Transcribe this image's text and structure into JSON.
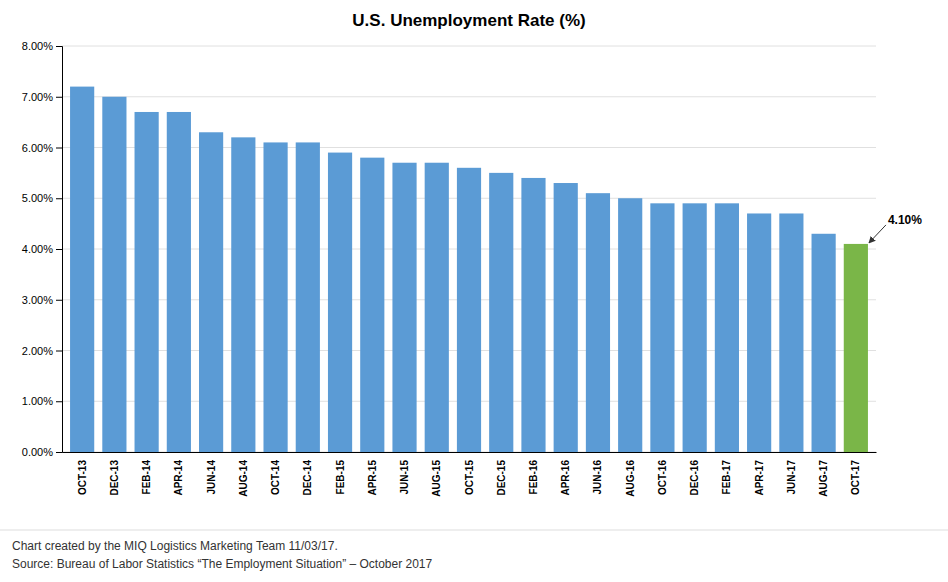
{
  "chart_data": {
    "type": "bar",
    "title": "U.S. Unemployment Rate (%)",
    "categories": [
      "OCT-13",
      "DEC-13",
      "FEB-14",
      "APR-14",
      "JUN-14",
      "AUG-14",
      "OCT-14",
      "DEC-14",
      "FEB-15",
      "APR-15",
      "JUN-15",
      "AUG-15",
      "OCT-15",
      "DEC-15",
      "FEB-16",
      "APR-16",
      "JUN-16",
      "AUG-16",
      "OCT-16",
      "DEC-16",
      "FEB-17",
      "APR-17",
      "JUN-17",
      "AUG-17",
      "OCT-17"
    ],
    "values": [
      0.072,
      0.07,
      0.067,
      0.067,
      0.063,
      0.062,
      0.061,
      0.061,
      0.059,
      0.058,
      0.057,
      0.057,
      0.056,
      0.055,
      0.054,
      0.053,
      0.051,
      0.05,
      0.049,
      0.049,
      0.049,
      0.047,
      0.047,
      0.043,
      0.041
    ],
    "colors": [
      "#5B9BD5",
      "#5B9BD5",
      "#5B9BD5",
      "#5B9BD5",
      "#5B9BD5",
      "#5B9BD5",
      "#5B9BD5",
      "#5B9BD5",
      "#5B9BD5",
      "#5B9BD5",
      "#5B9BD5",
      "#5B9BD5",
      "#5B9BD5",
      "#5B9BD5",
      "#5B9BD5",
      "#5B9BD5",
      "#5B9BD5",
      "#5B9BD5",
      "#5B9BD5",
      "#5B9BD5",
      "#5B9BD5",
      "#5B9BD5",
      "#5B9BD5",
      "#5B9BD5",
      "#7AB648"
    ],
    "ylim": [
      0.0,
      0.08
    ],
    "yticks": [
      {
        "value": 0.0,
        "label": "0.00%"
      },
      {
        "value": 0.01,
        "label": "1.00%"
      },
      {
        "value": 0.02,
        "label": "2.00%"
      },
      {
        "value": 0.03,
        "label": "3.00%"
      },
      {
        "value": 0.04,
        "label": "4.00%"
      },
      {
        "value": 0.05,
        "label": "5.00%"
      },
      {
        "value": 0.06,
        "label": "6.00%"
      },
      {
        "value": 0.07,
        "label": "7.00%"
      },
      {
        "value": 0.08,
        "label": "8.00%"
      }
    ],
    "grid": true,
    "annotation": "4.10%",
    "footer": [
      "Chart created by the MIQ Logistics Marketing Team 11/03/17.",
      "Source: Bureau of Labor Statistics “The Employment Situation” – October 2017"
    ]
  }
}
